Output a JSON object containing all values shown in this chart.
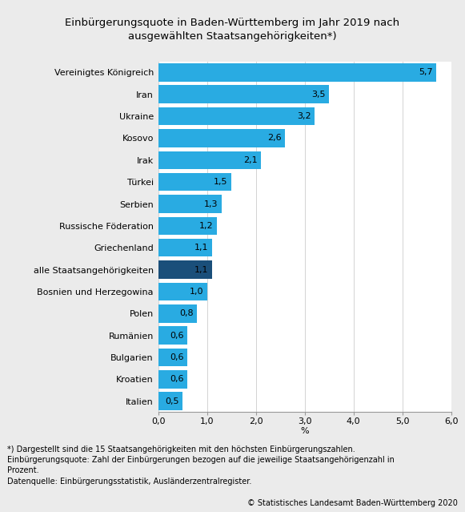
{
  "title": "Einbürgerungsquote in Baden-Württemberg im Jahr 2019 nach\nausgewählten Staatsangehörigkeiten*)",
  "categories": [
    "Vereinigtes Königreich",
    "Iran",
    "Ukraine",
    "Kosovo",
    "Irak",
    "Türkei",
    "Serbien",
    "Russische Föderation",
    "Griechenland",
    "alle Staatsangehörigkeiten",
    "Bosnien und Herzegowina",
    "Polen",
    "Rumänien",
    "Bulgarien",
    "Kroatien",
    "Italien"
  ],
  "values": [
    5.7,
    3.5,
    3.2,
    2.6,
    2.1,
    1.5,
    1.3,
    1.2,
    1.1,
    1.1,
    1.0,
    0.8,
    0.6,
    0.6,
    0.6,
    0.5
  ],
  "bar_colors": [
    "#29abe2",
    "#29abe2",
    "#29abe2",
    "#29abe2",
    "#29abe2",
    "#29abe2",
    "#29abe2",
    "#29abe2",
    "#29abe2",
    "#1a4f7a",
    "#29abe2",
    "#29abe2",
    "#29abe2",
    "#29abe2",
    "#29abe2",
    "#29abe2"
  ],
  "label_values": [
    "5,7",
    "3,5",
    "3,2",
    "2,6",
    "2,1",
    "1,5",
    "1,3",
    "1,2",
    "1,1",
    "1,1",
    "1,0",
    "0,8",
    "0,6",
    "0,6",
    "0,6",
    "0,5"
  ],
  "xlabel": "%",
  "xlim": [
    0,
    6.0
  ],
  "xticks": [
    0.0,
    1.0,
    2.0,
    3.0,
    4.0,
    5.0,
    6.0
  ],
  "xtick_labels": [
    "0,0",
    "1,0",
    "2,0",
    "3,0",
    "4,0",
    "5,0",
    "6,0"
  ],
  "footnote": "*) Dargestellt sind die 15 Staatsangehörigkeiten mit den höchsten Einbürgerungszahlen.\nEinbürgerungsquote: Zahl der Einbürgerungen bezogen auf die jeweilige Staatsangehörigenzahl in\nProzent.\nDatenquelle: Einbürgerungsstatistik, Ausländerzentralregister.",
  "copyright": "© Statistisches Landesamt Baden-Württemberg 2020",
  "background_color": "#ebebeb",
  "plot_background": "#ffffff",
  "grid_color": "#cccccc",
  "title_fontsize": 9.5,
  "label_fontsize": 8,
  "tick_fontsize": 8,
  "footnote_fontsize": 7,
  "copyright_fontsize": 7
}
